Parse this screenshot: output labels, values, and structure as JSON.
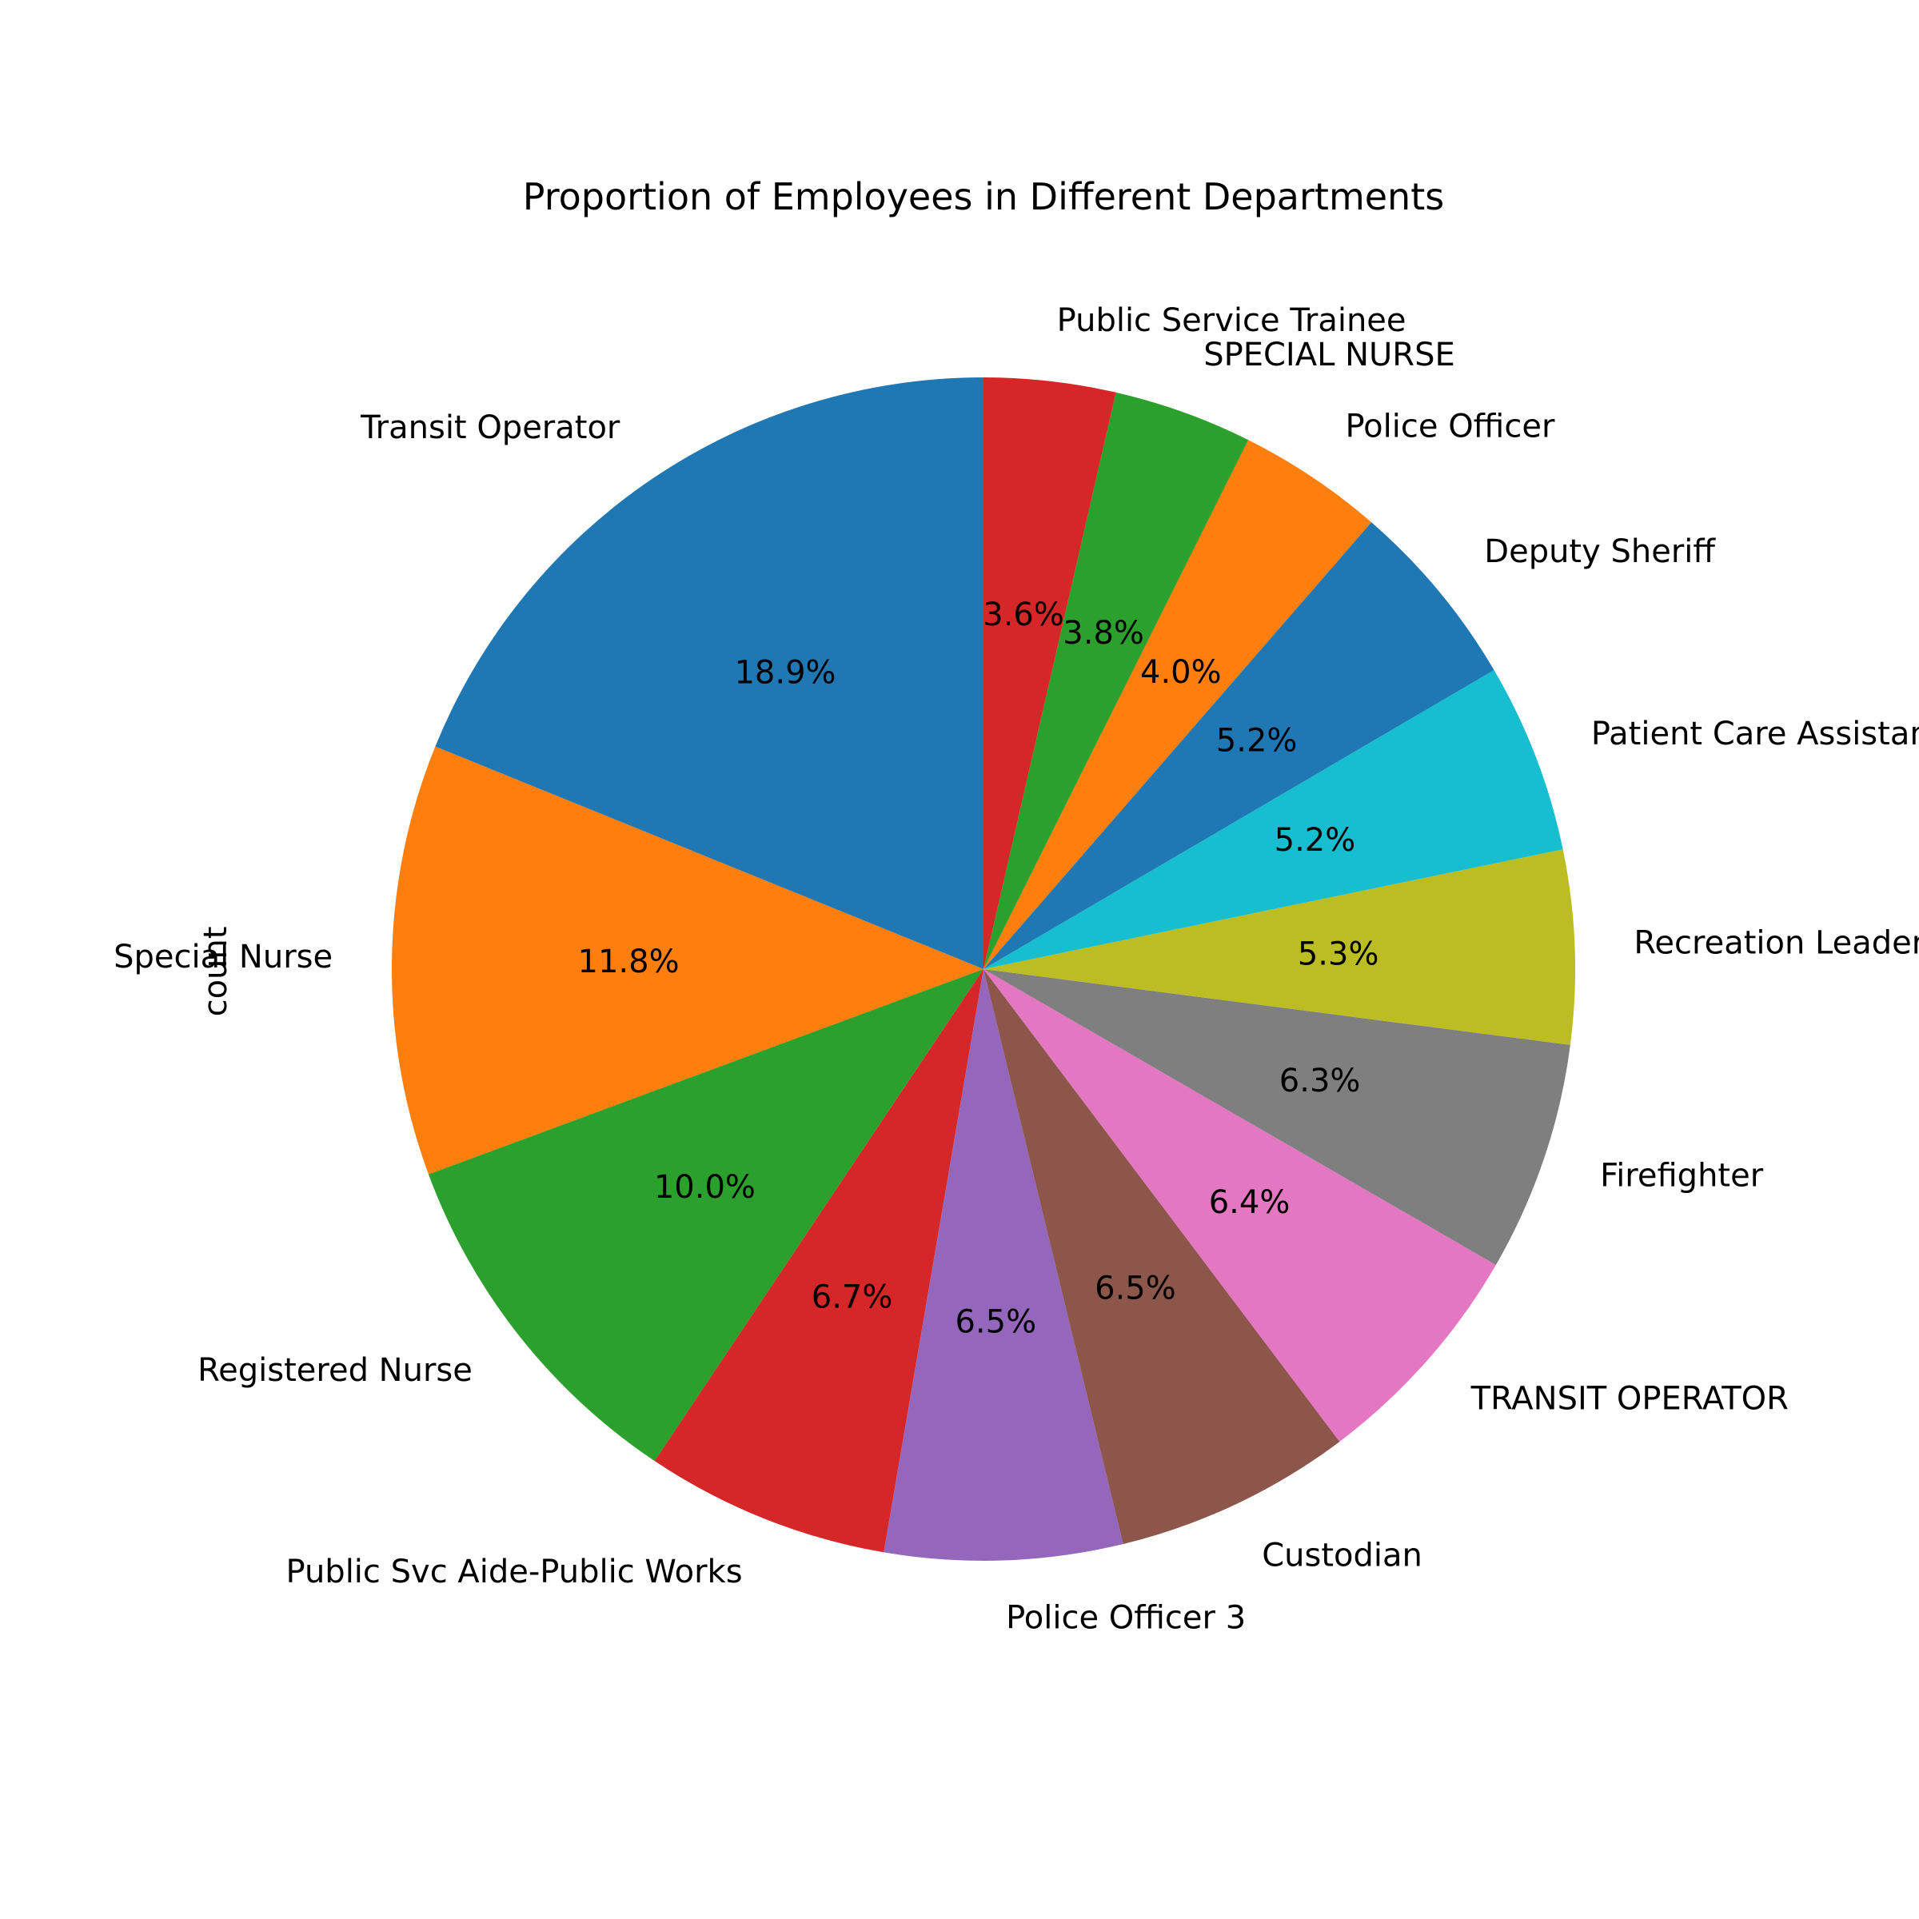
{
  "chart_data": {
    "type": "pie",
    "title": "Proportion of Employees in Different Departments",
    "ylabel": "count",
    "slices": [
      {
        "label": "Transit Operator",
        "percent": 18.9,
        "pct_label": "18.9%",
        "color": "#1f77b4"
      },
      {
        "label": "Special Nurse",
        "percent": 11.8,
        "pct_label": "11.8%",
        "color": "#ff7f0e"
      },
      {
        "label": "Registered Nurse",
        "percent": 10.0,
        "pct_label": "10.0%",
        "color": "#2ca02c"
      },
      {
        "label": "Public Svc Aide-Public Works",
        "percent": 6.7,
        "pct_label": "6.7%",
        "color": "#d62728"
      },
      {
        "label": "Police Officer 3",
        "percent": 6.5,
        "pct_label": "6.5%",
        "color": "#9467bd"
      },
      {
        "label": "Custodian",
        "percent": 6.5,
        "pct_label": "6.5%",
        "color": "#8c564b"
      },
      {
        "label": "TRANSIT OPERATOR",
        "percent": 6.4,
        "pct_label": "6.4%",
        "color": "#e377c2"
      },
      {
        "label": "Firefighter",
        "percent": 6.3,
        "pct_label": "6.3%",
        "color": "#7f7f7f"
      },
      {
        "label": "Recreation Leader",
        "percent": 5.3,
        "pct_label": "5.3%",
        "color": "#bcbd22"
      },
      {
        "label": "Patient Care Assistant",
        "percent": 5.2,
        "pct_label": "5.2%",
        "color": "#17becf"
      },
      {
        "label": "Deputy Sheriff",
        "percent": 5.2,
        "pct_label": "5.2%",
        "color": "#1f77b4"
      },
      {
        "label": "Police Officer",
        "percent": 4.0,
        "pct_label": "4.0%",
        "color": "#ff7f0e"
      },
      {
        "label": "SPECIAL NURSE",
        "percent": 3.8,
        "pct_label": "3.8%",
        "color": "#2ca02c"
      },
      {
        "label": "Public Service Trainee",
        "percent": 3.6,
        "pct_label": "3.6%",
        "color": "#d62728"
      }
    ],
    "start_angle": "top",
    "direction": "counterclockwise"
  }
}
